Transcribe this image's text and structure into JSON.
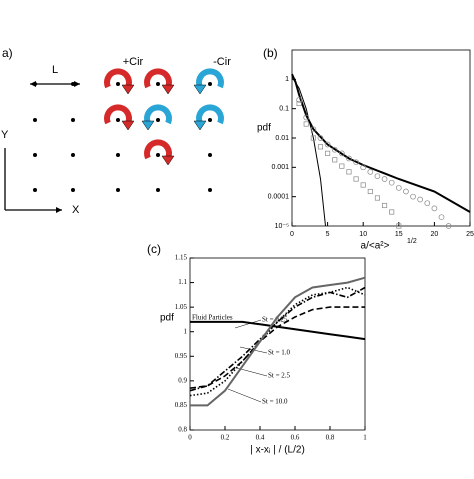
{
  "diagram": {
    "label": "a)",
    "spacing": "L",
    "plus": "+Cir",
    "minus": "-Cir",
    "y_axis": "Y",
    "x_axis": "X"
  },
  "chart_data": [
    {
      "type": "line",
      "panel": "(b)",
      "y_label": "pdf",
      "x_label": "a/<a²>",
      "x_label_sup": "1/2",
      "xlim": [
        0,
        25
      ],
      "xticks": [
        0,
        5,
        10,
        15,
        20,
        25
      ],
      "ylim": [
        1e-05,
        10
      ],
      "log_y": true,
      "yticks": [
        1,
        0.1,
        0.01,
        0.001,
        0.0001,
        {
          "value": 1e-05,
          "label": "10⁻⁵"
        }
      ],
      "series": [
        {
          "color": "#000000",
          "style": "thick",
          "x": [
            0,
            0.5,
            1,
            2,
            3,
            5,
            8,
            10,
            15,
            20,
            25
          ],
          "values": [
            1.5,
            0.8,
            0.3,
            0.06,
            0.02,
            0.006,
            0.002,
            0.0012,
            0.0004,
            0.00015,
            3e-05
          ]
        },
        {
          "color": "#000000",
          "style": "thin",
          "x": [
            0,
            1,
            2,
            3,
            4,
            4.7
          ],
          "values": [
            1.2,
            0.5,
            0.1,
            0.01,
            0.0004,
            1e-05
          ]
        },
        {
          "color": "#888888",
          "style": "circle",
          "x": [
            1,
            2,
            3,
            4,
            5,
            6,
            7,
            8,
            9,
            10,
            11,
            12,
            13,
            14,
            15,
            16,
            17,
            18,
            19,
            20,
            21,
            22
          ],
          "values": [
            0.2,
            0.05,
            0.02,
            0.01,
            0.006,
            0.004,
            0.003,
            0.002,
            0.0015,
            0.001,
            0.0007,
            0.0005,
            0.0004,
            0.0003,
            0.0002,
            0.00015,
            0.0001,
            8e-05,
            6e-05,
            4e-05,
            2e-05,
            1e-05
          ]
        },
        {
          "color": "#888888",
          "style": "square",
          "x": [
            1,
            2,
            3,
            4,
            5,
            6,
            7,
            8,
            9,
            10,
            11,
            12,
            13,
            14,
            15
          ],
          "values": [
            0.15,
            0.03,
            0.01,
            0.005,
            0.003,
            0.0018,
            0.0011,
            0.0007,
            0.0004,
            0.00025,
            0.00015,
            9e-05,
            5e-05,
            3e-05,
            1e-05
          ]
        }
      ]
    },
    {
      "type": "line",
      "panel": "(c)",
      "y_label": "pdf",
      "x_label": "| x-xᵢ | / (L/2)",
      "xlim": [
        0,
        1
      ],
      "xticks": [
        0,
        0.2,
        0.4,
        0.6,
        0.8,
        1
      ],
      "ylim": [
        0.8,
        1.15
      ],
      "yticks": [
        0.8,
        0.85,
        0.9,
        0.95,
        1,
        1.05,
        1.1,
        1.15
      ],
      "x": [
        0,
        0.1,
        0.2,
        0.3,
        0.4,
        0.5,
        0.6,
        0.7,
        0.8,
        0.9,
        1
      ],
      "series": [
        {
          "name": "Fluid Particles",
          "color": "#000000",
          "style": "thick",
          "values": [
            1.02,
            1.02,
            1.02,
            1.02,
            1.015,
            1.01,
            1.005,
            1.0,
            0.995,
            0.99,
            0.985
          ]
        },
        {
          "name": "St = 0.25",
          "color": "#000000",
          "style": "dash",
          "values": [
            0.885,
            0.89,
            0.91,
            0.94,
            0.98,
            1.01,
            1.03,
            1.045,
            1.05,
            1.05,
            1.05
          ]
        },
        {
          "name": "St = 1.0",
          "color": "#000000",
          "style": "dashdot",
          "values": [
            0.88,
            0.89,
            0.92,
            0.95,
            0.985,
            1.02,
            1.05,
            1.07,
            1.08,
            1.07,
            1.09
          ]
        },
        {
          "name": "St = 2.5",
          "color": "#000000",
          "style": "dot",
          "values": [
            0.87,
            0.875,
            0.9,
            0.94,
            0.98,
            1.02,
            1.055,
            1.075,
            1.08,
            1.09,
            1.075
          ]
        },
        {
          "name": "St = 10.0",
          "color": "#666666",
          "style": "thick",
          "values": [
            0.85,
            0.85,
            0.88,
            0.93,
            0.98,
            1.03,
            1.07,
            1.09,
            1.095,
            1.1,
            1.11
          ]
        }
      ]
    }
  ]
}
